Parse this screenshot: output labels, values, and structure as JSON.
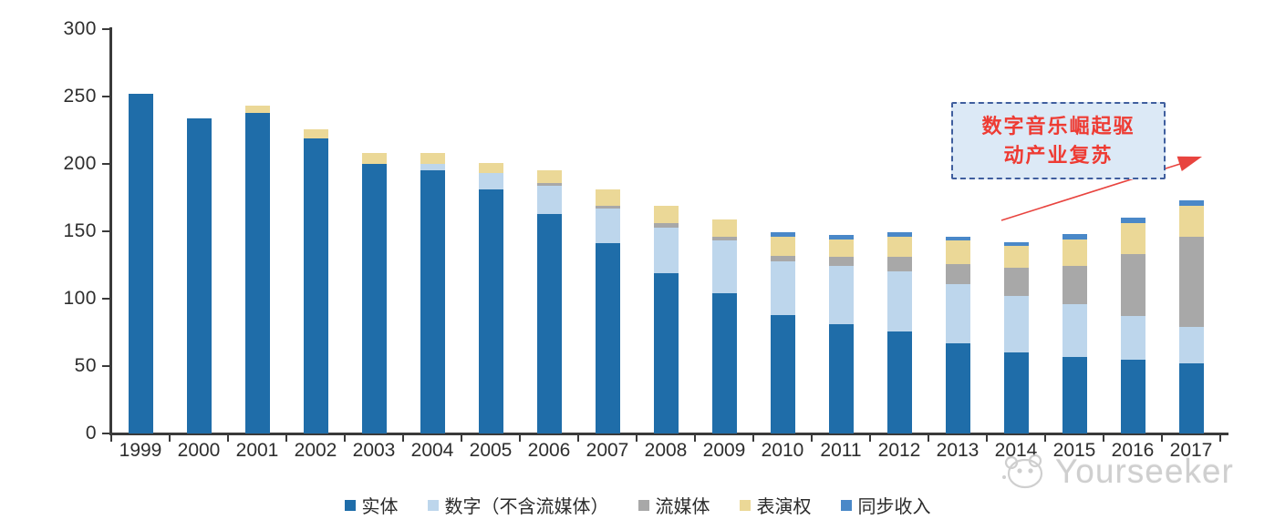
{
  "chart_data": {
    "type": "bar",
    "stacked": true,
    "title": "",
    "xlabel": "",
    "ylabel": "",
    "categories": [
      "1999",
      "2000",
      "2001",
      "2002",
      "2003",
      "2004",
      "2005",
      "2006",
      "2007",
      "2008",
      "2009",
      "2010",
      "2011",
      "2012",
      "2013",
      "2014",
      "2015",
      "2016",
      "2017"
    ],
    "series": [
      {
        "name": "实体",
        "color": "#1F6DA9",
        "values": [
          252,
          234,
          238,
          219,
          200,
          195,
          181,
          163,
          141,
          119,
          104,
          88,
          81,
          76,
          67,
          60,
          57,
          55,
          52
        ]
      },
      {
        "name": "数字（不含流媒体）",
        "color": "#BDD6EC",
        "values": [
          0,
          0,
          0,
          0,
          0,
          5,
          12,
          21,
          26,
          34,
          39,
          40,
          43,
          44,
          44,
          42,
          39,
          32,
          27
        ]
      },
      {
        "name": "流媒体",
        "color": "#A8A8A8",
        "values": [
          0,
          0,
          0,
          0,
          0,
          0,
          0,
          2,
          2,
          3,
          3,
          4,
          7,
          11,
          15,
          21,
          28,
          46,
          67
        ]
      },
      {
        "name": "表演权",
        "color": "#EBD897",
        "values": [
          0,
          0,
          5,
          7,
          8,
          8,
          8,
          9,
          12,
          13,
          13,
          14,
          13,
          15,
          17,
          16,
          20,
          23,
          23
        ]
      },
      {
        "name": "同步收入",
        "color": "#4A88C8",
        "values": [
          0,
          0,
          0,
          0,
          0,
          0,
          0,
          0,
          0,
          0,
          0,
          3,
          3,
          3,
          3,
          3,
          4,
          4,
          4
        ]
      }
    ],
    "ylim": [
      0,
      300
    ],
    "yticks": [
      0,
      50,
      100,
      150,
      200,
      250,
      300
    ],
    "grid": false,
    "legend_position": "bottom"
  },
  "annotation": {
    "line1": "数字音乐崛起驱",
    "line2": "动产业复苏",
    "text_color": "#EE3B33",
    "box_fill": "#DCE9F6",
    "box_border": "#3F5E9E",
    "arrow_color": "#E8443F"
  },
  "watermark": {
    "text": "Yourseeker"
  }
}
